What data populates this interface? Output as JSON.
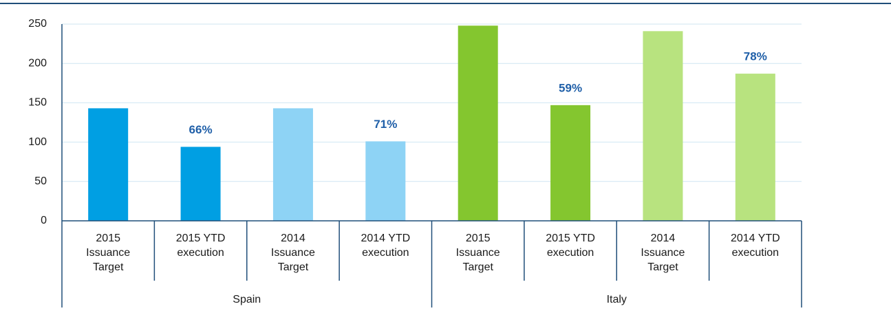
{
  "chart_data": {
    "type": "bar",
    "ylim": [
      0,
      250
    ],
    "yticks": [
      0,
      50,
      100,
      150,
      200,
      250
    ],
    "grid": true,
    "groups": [
      {
        "name": "Spain",
        "categories": [
          [
            "2015",
            "Issuance",
            "Target"
          ],
          [
            "2015 YTD",
            "execution"
          ],
          [
            "2014",
            "Issuance",
            "Target"
          ],
          [
            "2014 YTD",
            "execution"
          ]
        ],
        "values": [
          143,
          94,
          143,
          101
        ],
        "colors": [
          "#009fe3",
          "#009fe3",
          "#8ed3f5",
          "#8ed3f5"
        ],
        "execution_rates": [
          null,
          66,
          null,
          71
        ],
        "execution_rate_labels": [
          null,
          "66%",
          null,
          "71%"
        ]
      },
      {
        "name": "Italy",
        "categories": [
          [
            "2015",
            "Issuance",
            "Target"
          ],
          [
            "2015 YTD",
            "execution"
          ],
          [
            "2014",
            "Issuance",
            "Target"
          ],
          [
            "2014 YTD",
            "execution"
          ]
        ],
        "values": [
          248,
          147,
          241,
          187
        ],
        "colors": [
          "#84c62f",
          "#84c62f",
          "#b8e37f",
          "#b8e37f"
        ],
        "execution_rates": [
          null,
          59,
          null,
          78
        ],
        "execution_rate_labels": [
          null,
          "59%",
          null,
          "78%"
        ]
      }
    ]
  }
}
